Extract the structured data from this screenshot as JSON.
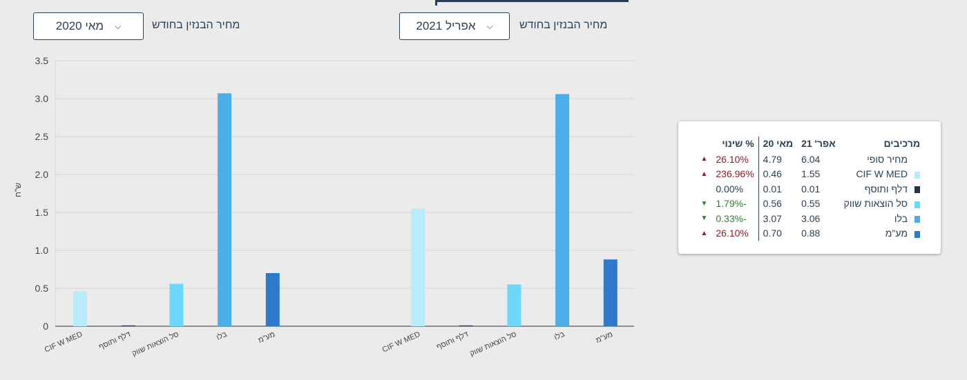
{
  "selectors": {
    "left": {
      "label": "מחיר הבנזין בחודש",
      "value": "מאי 2020"
    },
    "right": {
      "label": "מחיר הבנזין בחודש",
      "value": "אפריל 2021"
    }
  },
  "colors": {
    "cif": "#b8ecfa",
    "dolphin": "#253446",
    "basket": "#6ed8fc",
    "balo": "#4baee8",
    "maam": "#2e79c9",
    "up": "#8e1b2c",
    "down": "#2e7d32"
  },
  "chart_data": {
    "type": "bar",
    "ylabel": "ש\"ח",
    "ylim": [
      0,
      3.5
    ],
    "yticks": [
      "0",
      "0.5",
      "1.0",
      "1.5",
      "2.0",
      "2.5",
      "3.0",
      "3.5"
    ],
    "categories": [
      "CIF W MED",
      "דלף ותוסף",
      "סל הוצאות שווק",
      "בלו",
      "מע\"מ"
    ],
    "series": [
      {
        "values": [
          0.46,
          0.01,
          0.56,
          3.07,
          0.7
        ]
      },
      {
        "values": [
          1.55,
          0.01,
          0.55,
          3.06,
          0.88
        ]
      }
    ]
  },
  "legend": {
    "headers": {
      "components": "מרכיבים",
      "apr21": "אפר' 21",
      "may20": "מאי 20",
      "change": "% שינוי"
    },
    "rows": [
      {
        "name": "מחיר סופי",
        "apr21": "6.04",
        "may20": "4.79",
        "change": "26.10%",
        "dir": "up",
        "color": ""
      },
      {
        "name": "CIF W MED",
        "apr21": "1.55",
        "may20": "0.46",
        "change": "236.96%",
        "dir": "up",
        "color": "#b8ecfa"
      },
      {
        "name": "דלף ותוסף",
        "apr21": "0.01",
        "may20": "0.01",
        "change": "0.00%",
        "dir": "none",
        "color": "#253446"
      },
      {
        "name": "סל הוצאות שווק",
        "apr21": "0.55",
        "may20": "0.56",
        "change": "-1.79%",
        "dir": "down",
        "color": "#6ed8fc"
      },
      {
        "name": "בלו",
        "apr21": "3.06",
        "may20": "3.07",
        "change": "-0.33%",
        "dir": "down",
        "color": "#4baee8"
      },
      {
        "name": "מע\"מ",
        "apr21": "0.88",
        "may20": "0.70",
        "change": "26.10%",
        "dir": "up",
        "color": "#2e79c9"
      }
    ]
  }
}
